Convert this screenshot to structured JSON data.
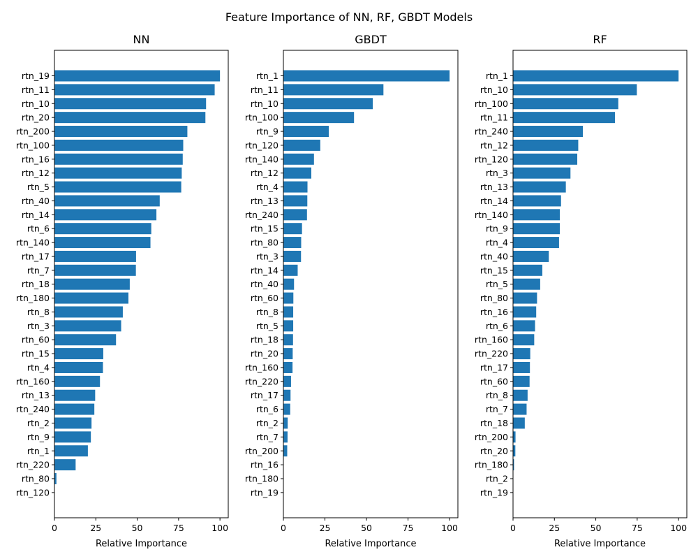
{
  "figure": {
    "suptitle": "Feature Importance of NN, RF, GBDT Models",
    "bar_color": "#1f77b4"
  },
  "chart_data": [
    {
      "type": "bar",
      "orientation": "horizontal",
      "title": "NN",
      "xlabel": "Relative Importance",
      "ylabel": "",
      "xlim": [
        0,
        105
      ],
      "xticks": [
        0,
        25,
        50,
        75,
        100
      ],
      "grid": false,
      "categories": [
        "rtn_19",
        "rtn_11",
        "rtn_10",
        "rtn_20",
        "rtn_200",
        "rtn_100",
        "rtn_16",
        "rtn_12",
        "rtn_5",
        "rtn_40",
        "rtn_14",
        "rtn_6",
        "rtn_140",
        "rtn_17",
        "rtn_7",
        "rtn_18",
        "rtn_180",
        "rtn_8",
        "rtn_3",
        "rtn_60",
        "rtn_15",
        "rtn_4",
        "rtn_160",
        "rtn_13",
        "rtn_240",
        "rtn_2",
        "rtn_9",
        "rtn_1",
        "rtn_220",
        "rtn_80",
        "rtn_120"
      ],
      "values": [
        100,
        96.8,
        91.6,
        91.2,
        80.3,
        77.8,
        77.5,
        76.9,
        76.6,
        63.6,
        61.6,
        58.5,
        58.0,
        49.3,
        49.2,
        45.5,
        44.7,
        41.3,
        40.3,
        37.2,
        29.5,
        29.3,
        27.5,
        24.6,
        24.1,
        22.4,
        22.0,
        20.2,
        12.8,
        1.2,
        0
      ]
    },
    {
      "type": "bar",
      "orientation": "horizontal",
      "title": "GBDT",
      "xlabel": "Relative Importance",
      "ylabel": "",
      "xlim": [
        0,
        105
      ],
      "xticks": [
        0,
        25,
        50,
        75,
        100
      ],
      "grid": false,
      "categories": [
        "rtn_1",
        "rtn_11",
        "rtn_10",
        "rtn_100",
        "rtn_9",
        "rtn_120",
        "rtn_140",
        "rtn_12",
        "rtn_4",
        "rtn_13",
        "rtn_240",
        "rtn_15",
        "rtn_80",
        "rtn_3",
        "rtn_14",
        "rtn_40",
        "rtn_60",
        "rtn_8",
        "rtn_5",
        "rtn_18",
        "rtn_20",
        "rtn_160",
        "rtn_220",
        "rtn_17",
        "rtn_6",
        "rtn_2",
        "rtn_7",
        "rtn_200",
        "rtn_16",
        "rtn_180",
        "rtn_19"
      ],
      "values": [
        100,
        60.2,
        53.8,
        42.5,
        27.3,
        22.2,
        18.4,
        16.8,
        14.5,
        14.4,
        14.2,
        11.2,
        10.7,
        10.6,
        8.6,
        6.4,
        6.0,
        5.9,
        5.9,
        5.8,
        5.6,
        5.5,
        4.6,
        4.3,
        4.1,
        2.6,
        2.5,
        2.3,
        0.2,
        0.1,
        0
      ]
    },
    {
      "type": "bar",
      "orientation": "horizontal",
      "title": "RF",
      "xlabel": "Relative Importance",
      "ylabel": "",
      "xlim": [
        0,
        105
      ],
      "xticks": [
        0,
        25,
        50,
        75,
        100
      ],
      "grid": false,
      "categories": [
        "rtn_1",
        "rtn_10",
        "rtn_100",
        "rtn_11",
        "rtn_240",
        "rtn_12",
        "rtn_120",
        "rtn_3",
        "rtn_13",
        "rtn_14",
        "rtn_140",
        "rtn_9",
        "rtn_4",
        "rtn_40",
        "rtn_15",
        "rtn_5",
        "rtn_80",
        "rtn_16",
        "rtn_6",
        "rtn_160",
        "rtn_220",
        "rtn_17",
        "rtn_60",
        "rtn_8",
        "rtn_7",
        "rtn_18",
        "rtn_200",
        "rtn_20",
        "rtn_180",
        "rtn_2",
        "rtn_19"
      ],
      "values": [
        100,
        74.8,
        63.6,
        61.6,
        42.2,
        39.4,
        38.8,
        34.7,
        31.9,
        29.0,
        28.3,
        28.3,
        27.8,
        21.6,
        17.7,
        16.4,
        14.5,
        14.0,
        13.3,
        12.8,
        10.4,
        10.2,
        10.0,
        8.8,
        8.2,
        7.1,
        1.5,
        1.4,
        0.6,
        0.2,
        0
      ]
    }
  ]
}
